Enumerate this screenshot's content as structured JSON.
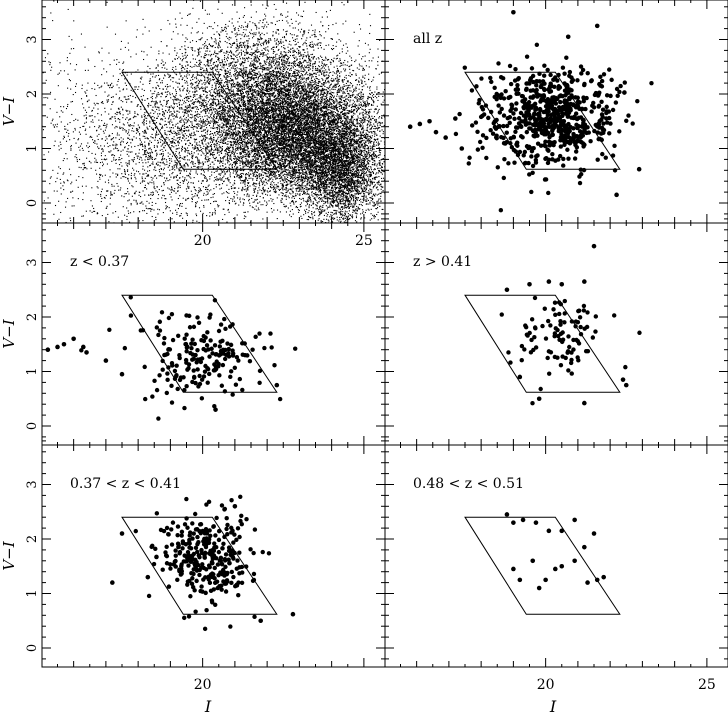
{
  "figure": {
    "xlabel": "I",
    "ylabel": "V−I"
  },
  "chart_data": [
    {
      "type": "scatter",
      "panel": "top-left",
      "annotation": "",
      "xlabel": "",
      "ylabel": "V−I",
      "xlim": [
        15,
        25
      ],
      "ylim": [
        -0.3,
        3.9
      ],
      "x_ticks": [
        "20",
        "25"
      ],
      "y_ticks": [
        "0",
        "1",
        "2",
        "3"
      ],
      "selection_box": [
        [
          17.5,
          2.4
        ],
        [
          19.4,
          0.62
        ],
        [
          22.3,
          0.62
        ],
        [
          20.3,
          2.4
        ]
      ],
      "density_regions": [
        {
          "name": "core",
          "x": 23.0,
          "y": 1.25,
          "sx": 1.3,
          "sy": 0.6,
          "n": 9000
        },
        {
          "name": "tail",
          "x": 24.3,
          "y": 0.55,
          "sx": 0.6,
          "sy": 0.45,
          "n": 2500
        },
        {
          "name": "red-halo",
          "x": 21.8,
          "y": 2.2,
          "sx": 1.4,
          "sy": 0.6,
          "n": 3500
        },
        {
          "name": "blue-field",
          "x": 19.5,
          "y": 1.2,
          "sx": 1.8,
          "sy": 0.7,
          "n": 2000
        },
        {
          "name": "sparse",
          "x": 18.0,
          "y": 1.0,
          "sx": 2.2,
          "sy": 1.0,
          "n": 1000
        }
      ]
    },
    {
      "type": "scatter",
      "panel": "top-right",
      "annotation": "all z",
      "xlabel": "",
      "ylabel": "",
      "xlim": [
        15,
        25
      ],
      "ylim": [
        -0.3,
        3.9
      ],
      "x_ticks": [],
      "y_ticks": [],
      "selection_box": [
        [
          17.5,
          2.4
        ],
        [
          19.4,
          0.62
        ],
        [
          22.3,
          0.62
        ],
        [
          20.3,
          2.4
        ]
      ],
      "cloud": {
        "x": 20.2,
        "y": 1.55,
        "sx": 1.05,
        "sy": 0.45,
        "n": 650
      },
      "points": [
        [
          15.8,
          1.4
        ],
        [
          16.1,
          1.45
        ],
        [
          16.4,
          1.5
        ],
        [
          16.6,
          1.3
        ],
        [
          16.9,
          1.2
        ],
        [
          17.2,
          1.55
        ],
        [
          17.4,
          1.0
        ],
        [
          19.0,
          3.5
        ],
        [
          20.7,
          3.05
        ],
        [
          21.6,
          3.25
        ],
        [
          22.2,
          0.15
        ],
        [
          22.9,
          0.62
        ]
      ]
    },
    {
      "type": "scatter",
      "panel": "middle-left",
      "annotation": "z < 0.37",
      "xlabel": "",
      "ylabel": "V−I",
      "xlim": [
        15,
        25
      ],
      "ylim": [
        -0.3,
        3.9
      ],
      "x_ticks": [],
      "y_ticks": [
        "0",
        "1",
        "2",
        "3"
      ],
      "selection_box": [
        [
          17.5,
          2.4
        ],
        [
          19.4,
          0.62
        ],
        [
          22.3,
          0.62
        ],
        [
          20.3,
          2.4
        ]
      ],
      "cloud": {
        "x": 19.9,
        "y": 1.25,
        "sx": 1.0,
        "sy": 0.35,
        "n": 190
      },
      "points": [
        [
          15.2,
          1.4
        ],
        [
          15.5,
          1.45
        ],
        [
          15.7,
          1.5
        ],
        [
          16.0,
          1.6
        ],
        [
          16.3,
          1.45
        ],
        [
          16.4,
          1.35
        ],
        [
          17.0,
          1.2
        ],
        [
          17.5,
          0.95
        ],
        [
          20.4,
          0.3
        ],
        [
          22.3,
          0.75
        ]
      ]
    },
    {
      "type": "scatter",
      "panel": "middle-right",
      "annotation": "z > 0.41",
      "xlabel": "",
      "ylabel": "",
      "xlim": [
        15,
        25
      ],
      "ylim": [
        -0.3,
        3.9
      ],
      "x_ticks": [],
      "y_ticks": [],
      "selection_box": [
        [
          17.5,
          2.4
        ],
        [
          19.4,
          0.62
        ],
        [
          22.3,
          0.62
        ],
        [
          20.3,
          2.4
        ]
      ],
      "cloud": {
        "x": 20.5,
        "y": 1.65,
        "sx": 0.75,
        "sy": 0.42,
        "n": 95
      },
      "points": [
        [
          18.8,
          2.5
        ],
        [
          19.5,
          2.6
        ],
        [
          20.1,
          2.65
        ],
        [
          20.5,
          2.6
        ],
        [
          21.2,
          2.65
        ],
        [
          21.5,
          3.3
        ],
        [
          19.2,
          0.9
        ],
        [
          19.8,
          0.5
        ],
        [
          21.2,
          0.42
        ],
        [
          22.5,
          0.75
        ],
        [
          22.4,
          0.85
        ]
      ]
    },
    {
      "type": "scatter",
      "panel": "bottom-left",
      "annotation": "0.37 < z < 0.41",
      "xlabel": "I",
      "ylabel": "V−I",
      "xlim": [
        15,
        25
      ],
      "ylim": [
        -0.3,
        3.9
      ],
      "x_ticks": [
        "20"
      ],
      "y_ticks": [
        "0",
        "1",
        "2",
        "3"
      ],
      "selection_box": [
        [
          17.5,
          2.4
        ],
        [
          19.4,
          0.62
        ],
        [
          22.3,
          0.62
        ],
        [
          20.3,
          2.4
        ]
      ],
      "cloud": {
        "x": 20.1,
        "y": 1.65,
        "sx": 0.75,
        "sy": 0.42,
        "n": 300
      },
      "points": [
        [
          17.2,
          1.2
        ],
        [
          17.5,
          2.1
        ],
        [
          18.3,
          1.3
        ],
        [
          21.0,
          2.6
        ],
        [
          21.8,
          0.5
        ],
        [
          22.8,
          0.62
        ]
      ]
    },
    {
      "type": "scatter",
      "panel": "bottom-right",
      "annotation": "0.48 < z < 0.51",
      "xlabel": "I",
      "ylabel": "",
      "xlim": [
        15,
        25
      ],
      "ylim": [
        -0.3,
        3.9
      ],
      "x_ticks": [
        "20",
        "25"
      ],
      "y_ticks": [],
      "selection_box": [
        [
          17.5,
          2.4
        ],
        [
          19.4,
          0.62
        ],
        [
          22.3,
          0.62
        ],
        [
          20.3,
          2.4
        ]
      ],
      "points": [
        [
          18.8,
          2.45
        ],
        [
          19.0,
          2.3
        ],
        [
          19.3,
          2.35
        ],
        [
          19.7,
          2.3
        ],
        [
          20.1,
          2.15
        ],
        [
          20.5,
          2.15
        ],
        [
          20.9,
          2.35
        ],
        [
          21.5,
          2.1
        ],
        [
          21.2,
          1.85
        ],
        [
          20.9,
          1.6
        ],
        [
          19.6,
          1.6
        ],
        [
          19.0,
          1.45
        ],
        [
          20.3,
          1.45
        ],
        [
          20.5,
          1.5
        ],
        [
          19.2,
          1.25
        ],
        [
          20.0,
          1.25
        ],
        [
          21.6,
          1.25
        ],
        [
          21.3,
          1.2
        ],
        [
          19.8,
          1.1
        ],
        [
          21.8,
          1.3
        ]
      ]
    }
  ]
}
